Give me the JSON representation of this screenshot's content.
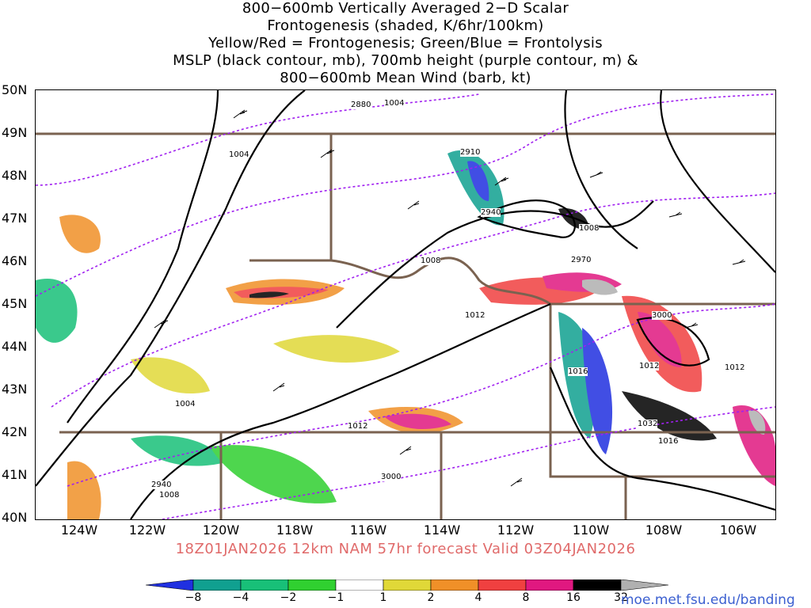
{
  "title_lines": [
    "800−600mb Vertically Averaged 2−D Scalar",
    "Frontogenesis (shaded, K/6hr/100km)",
    "Yellow/Red = Frontogenesis;  Green/Blue = Frontolysis",
    "MSLP (black contour, mb), 700mb height (purple contour, m) &",
    "800−600mb Mean Wind (barb, kt)"
  ],
  "lat_labels": [
    "50N",
    "49N",
    "48N",
    "47N",
    "46N",
    "45N",
    "44N",
    "43N",
    "42N",
    "41N",
    "40N"
  ],
  "lon_labels": [
    "124W",
    "122W",
    "120W",
    "118W",
    "116W",
    "114W",
    "112W",
    "110W",
    "108W",
    "106W"
  ],
  "contour_labels": {
    "mslp": [
      "1004",
      "1004",
      "1008",
      "1008",
      "1012",
      "1012",
      "1012",
      "1012",
      "1016",
      "1016",
      "1004",
      "1008",
      "1032"
    ],
    "height": [
      "2880",
      "2910",
      "2940",
      "2970",
      "3000",
      "3000",
      "2940"
    ]
  },
  "valid_line": "18Z01JAN2026 12km NAM 57hr forecast Valid 03Z04JAN2026",
  "colorbar": {
    "labels": [
      "−8",
      "−4",
      "−2",
      "−1",
      "1",
      "2",
      "4",
      "8",
      "16",
      "32"
    ],
    "colors": [
      "#2030e0",
      "#10a090",
      "#18c078",
      "#30d030",
      "#ffffff",
      "#e0d838",
      "#f09028",
      "#f04040",
      "#e01880",
      "#000000",
      "#b0b0b0"
    ]
  },
  "credit": "moe.met.fsu.edu/banding",
  "colors": {
    "state_border": "#7a6250",
    "mslp_contour": "#000000",
    "height_contour": "#a020f0",
    "valid_text": "#e06a6a",
    "credit_text": "#3b5fd0"
  }
}
